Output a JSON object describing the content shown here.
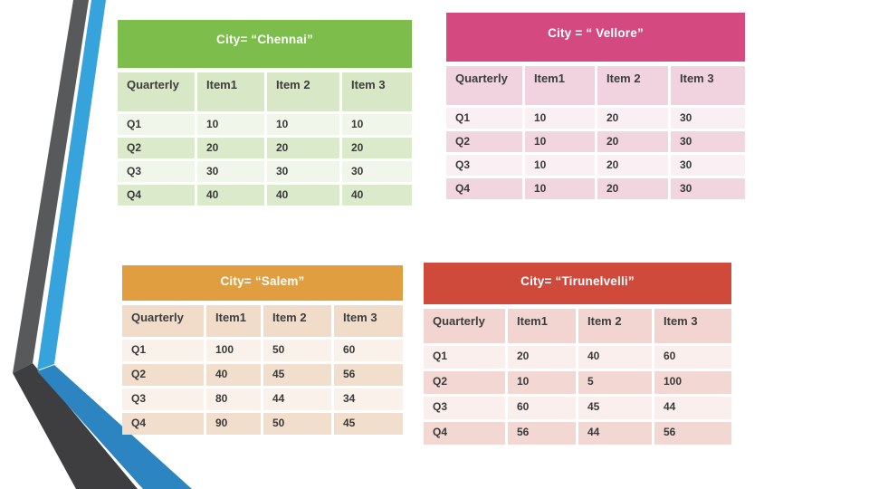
{
  "slide": {
    "background_color": "#FFFFFF",
    "decoration": {
      "name": "angled-ribbon",
      "gray_top": "#58595B",
      "gray_bottom": "#3E3E40",
      "blue_top": "#36A3DC",
      "blue_bottom": "#2C85C1"
    }
  },
  "tables": [
    {
      "id": "chennai",
      "title": "City= “Chennai”",
      "accent": "#7CBD4B",
      "tint_header_row": "#D8E7C6",
      "tint_row_light": "#F1F6EB",
      "tint_row_dark": "#DCEACC",
      "columns": [
        "Quarterly",
        "Item1",
        "Item 2",
        "Item 3"
      ],
      "rows": [
        [
          "Q1",
          "10",
          "10",
          "10"
        ],
        [
          "Q2",
          "20",
          "20",
          "20"
        ],
        [
          "Q3",
          "30",
          "30",
          "30"
        ],
        [
          "Q4",
          "40",
          "40",
          "40"
        ]
      ]
    },
    {
      "id": "vellore",
      "title": "City = “ Vellore”",
      "accent": "#D44980",
      "tint_header_row": "#F0D3DE",
      "tint_row_light": "#FAEFF3",
      "tint_row_dark": "#F1D5DF",
      "columns": [
        "Quarterly",
        "Item1",
        "Item 2",
        "Item 3"
      ],
      "rows": [
        [
          "Q1",
          "10",
          "20",
          "30"
        ],
        [
          "Q2",
          "10",
          "20",
          "30"
        ],
        [
          "Q3",
          "10",
          "20",
          "30"
        ],
        [
          "Q4",
          "10",
          "20",
          "30"
        ]
      ]
    },
    {
      "id": "salem",
      "title": "City= “Salem”",
      "accent": "#E09E40",
      "tint_header_row": "#F1DCCA",
      "tint_row_light": "#FAF2EA",
      "tint_row_dark": "#F2DECC",
      "columns": [
        "Quarterly",
        "Item1",
        "Item 2",
        "Item 3"
      ],
      "rows": [
        [
          "Q1",
          "100",
          "50",
          "60"
        ],
        [
          "Q2",
          "40",
          "45",
          "56"
        ],
        [
          "Q3",
          "80",
          "44",
          "34"
        ],
        [
          "Q4",
          "90",
          "50",
          "45"
        ]
      ]
    },
    {
      "id": "tirunelvelli",
      "title": "City= “Tirunelvelli”",
      "accent": "#D04A3C",
      "tint_header_row": "#F2D5D1",
      "tint_row_light": "#FBEFED",
      "tint_row_dark": "#F3D7D3",
      "columns": [
        "Quarterly",
        "Item1",
        "Item 2",
        "Item 3"
      ],
      "rows": [
        [
          "Q1",
          "20",
          "40",
          "60"
        ],
        [
          "Q2",
          "10",
          "5",
          "100"
        ],
        [
          "Q3",
          "60",
          "45",
          "44"
        ],
        [
          "Q4",
          "56",
          "44",
          "56"
        ]
      ]
    }
  ]
}
